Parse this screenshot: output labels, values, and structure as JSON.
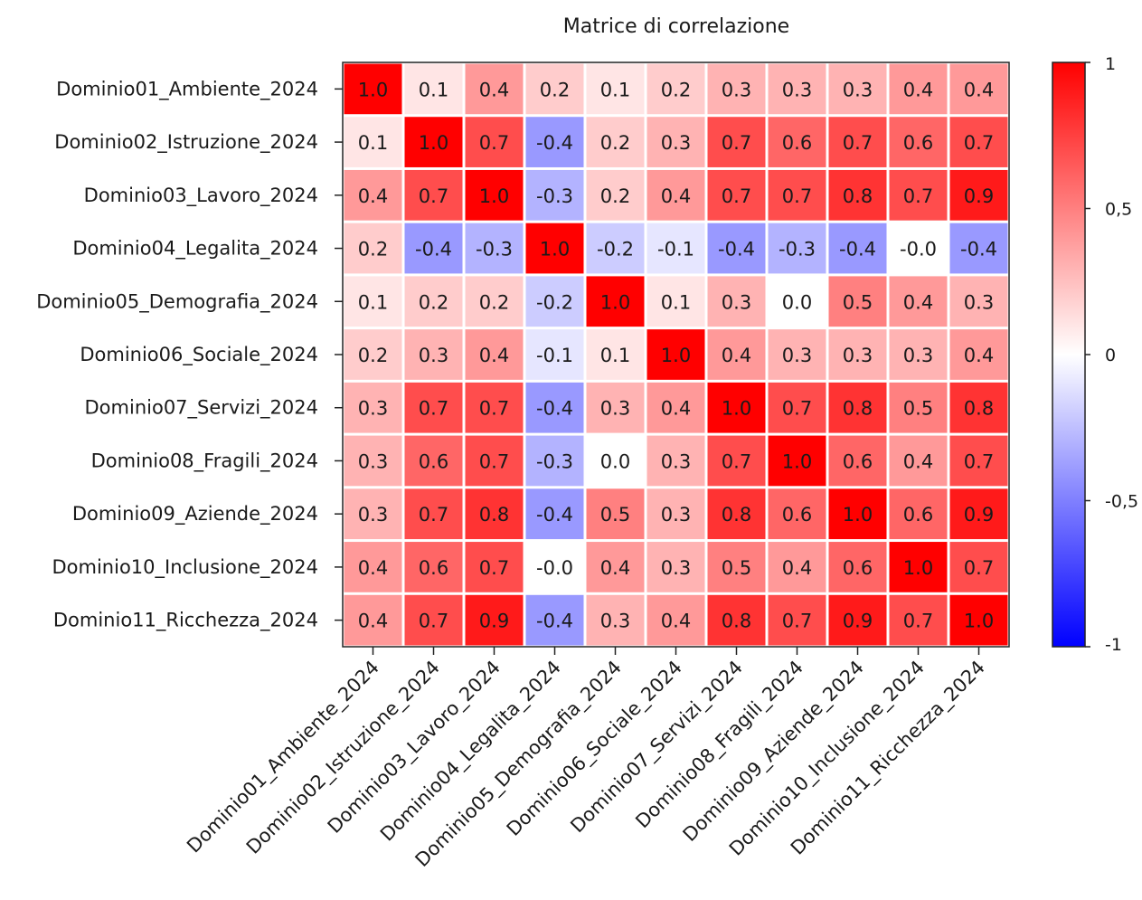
{
  "chart_data": {
    "type": "heatmap",
    "title": "Matrice di correlazione",
    "rows": [
      "Dominio01_Ambiente_2024",
      "Dominio02_Istruzione_2024",
      "Dominio03_Lavoro_2024",
      "Dominio04_Legalita_2024",
      "Dominio05_Demografia_2024",
      "Dominio06_Sociale_2024",
      "Dominio07_Servizi_2024",
      "Dominio08_Fragili_2024",
      "Dominio09_Aziende_2024",
      "Dominio10_Inclusione_2024",
      "Dominio11_Ricchezza_2024"
    ],
    "columns": [
      "Dominio01_Ambiente_2024",
      "Dominio02_Istruzione_2024",
      "Dominio03_Lavoro_2024",
      "Dominio04_Legalita_2024",
      "Dominio05_Demografia_2024",
      "Dominio06_Sociale_2024",
      "Dominio07_Servizi_2024",
      "Dominio08_Fragili_2024",
      "Dominio09_Aziende_2024",
      "Dominio10_Inclusione_2024",
      "Dominio11_Ricchezza_2024"
    ],
    "values": [
      [
        "1.0",
        "0.1",
        "0.4",
        "0.2",
        "0.1",
        "0.2",
        "0.3",
        "0.3",
        "0.3",
        "0.4",
        "0.4"
      ],
      [
        "0.1",
        "1.0",
        "0.7",
        "-0.4",
        "0.2",
        "0.3",
        "0.7",
        "0.6",
        "0.7",
        "0.6",
        "0.7"
      ],
      [
        "0.4",
        "0.7",
        "1.0",
        "-0.3",
        "0.2",
        "0.4",
        "0.7",
        "0.7",
        "0.8",
        "0.7",
        "0.9"
      ],
      [
        "0.2",
        "-0.4",
        "-0.3",
        "1.0",
        "-0.2",
        "-0.1",
        "-0.4",
        "-0.3",
        "-0.4",
        "-0.0",
        "-0.4"
      ],
      [
        "0.1",
        "0.2",
        "0.2",
        "-0.2",
        "1.0",
        "0.1",
        "0.3",
        "0.0",
        "0.5",
        "0.4",
        "0.3"
      ],
      [
        "0.2",
        "0.3",
        "0.4",
        "-0.1",
        "0.1",
        "1.0",
        "0.4",
        "0.3",
        "0.3",
        "0.3",
        "0.4"
      ],
      [
        "0.3",
        "0.7",
        "0.7",
        "-0.4",
        "0.3",
        "0.4",
        "1.0",
        "0.7",
        "0.8",
        "0.5",
        "0.8"
      ],
      [
        "0.3",
        "0.6",
        "0.7",
        "-0.3",
        "0.0",
        "0.3",
        "0.7",
        "1.0",
        "0.6",
        "0.4",
        "0.7"
      ],
      [
        "0.3",
        "0.7",
        "0.8",
        "-0.4",
        "0.5",
        "0.3",
        "0.8",
        "0.6",
        "1.0",
        "0.6",
        "0.9"
      ],
      [
        "0.4",
        "0.6",
        "0.7",
        "-0.0",
        "0.4",
        "0.3",
        "0.5",
        "0.4",
        "0.6",
        "1.0",
        "0.7"
      ],
      [
        "0.4",
        "0.7",
        "0.9",
        "-0.4",
        "0.3",
        "0.4",
        "0.8",
        "0.7",
        "0.9",
        "0.7",
        "1.0"
      ]
    ],
    "colorbar": {
      "min": -1,
      "max": 1,
      "ticks": [
        1,
        0.5,
        0,
        -0.5,
        -1
      ],
      "tick_labels": [
        "1",
        "0,5",
        "0",
        "-0,5",
        "-1"
      ],
      "colors": {
        "low": "#0000ff",
        "mid": "#ffffff",
        "high": "#ff0000"
      }
    },
    "legend_placement": "right",
    "grid": false
  }
}
